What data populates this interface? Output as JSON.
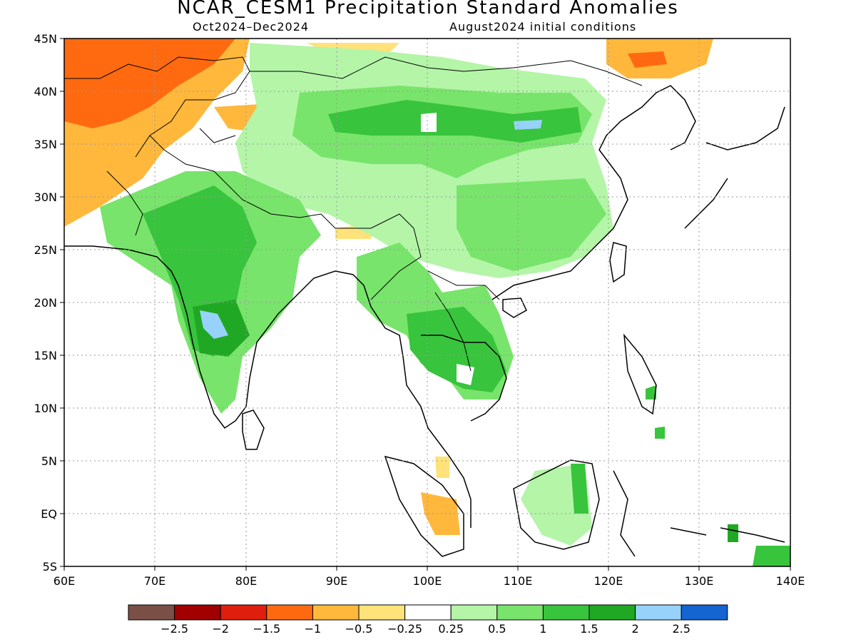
{
  "title": "NCAR_CESM1 Precipitation Standard Anomalies",
  "subtitle_left": "Oct2024–Dec2024",
  "subtitle_right": "August2024 initial conditions",
  "lon_labels": [
    "60E",
    "70E",
    "80E",
    "90E",
    "100E",
    "110E",
    "120E",
    "130E",
    "140E"
  ],
  "lat_labels": [
    "45N",
    "40N",
    "35N",
    "30N",
    "25N",
    "20N",
    "15N",
    "10N",
    "5N",
    "EQ",
    "5S"
  ],
  "legend": {
    "colors": [
      "#7a4f45",
      "#a00000",
      "#e01e0e",
      "#ff6a10",
      "#ffb83c",
      "#ffe27a",
      "#ffffff",
      "#b4f5a8",
      "#78e46b",
      "#38c43c",
      "#20a824",
      "#96d2fa",
      "#1464d2"
    ],
    "tick_labels": [
      "−2.5",
      "−2",
      "−1.5",
      "−1",
      "−0.5",
      "−0.25",
      "0.25",
      "0.5",
      "1",
      "1.5",
      "2",
      "2.5"
    ]
  }
}
